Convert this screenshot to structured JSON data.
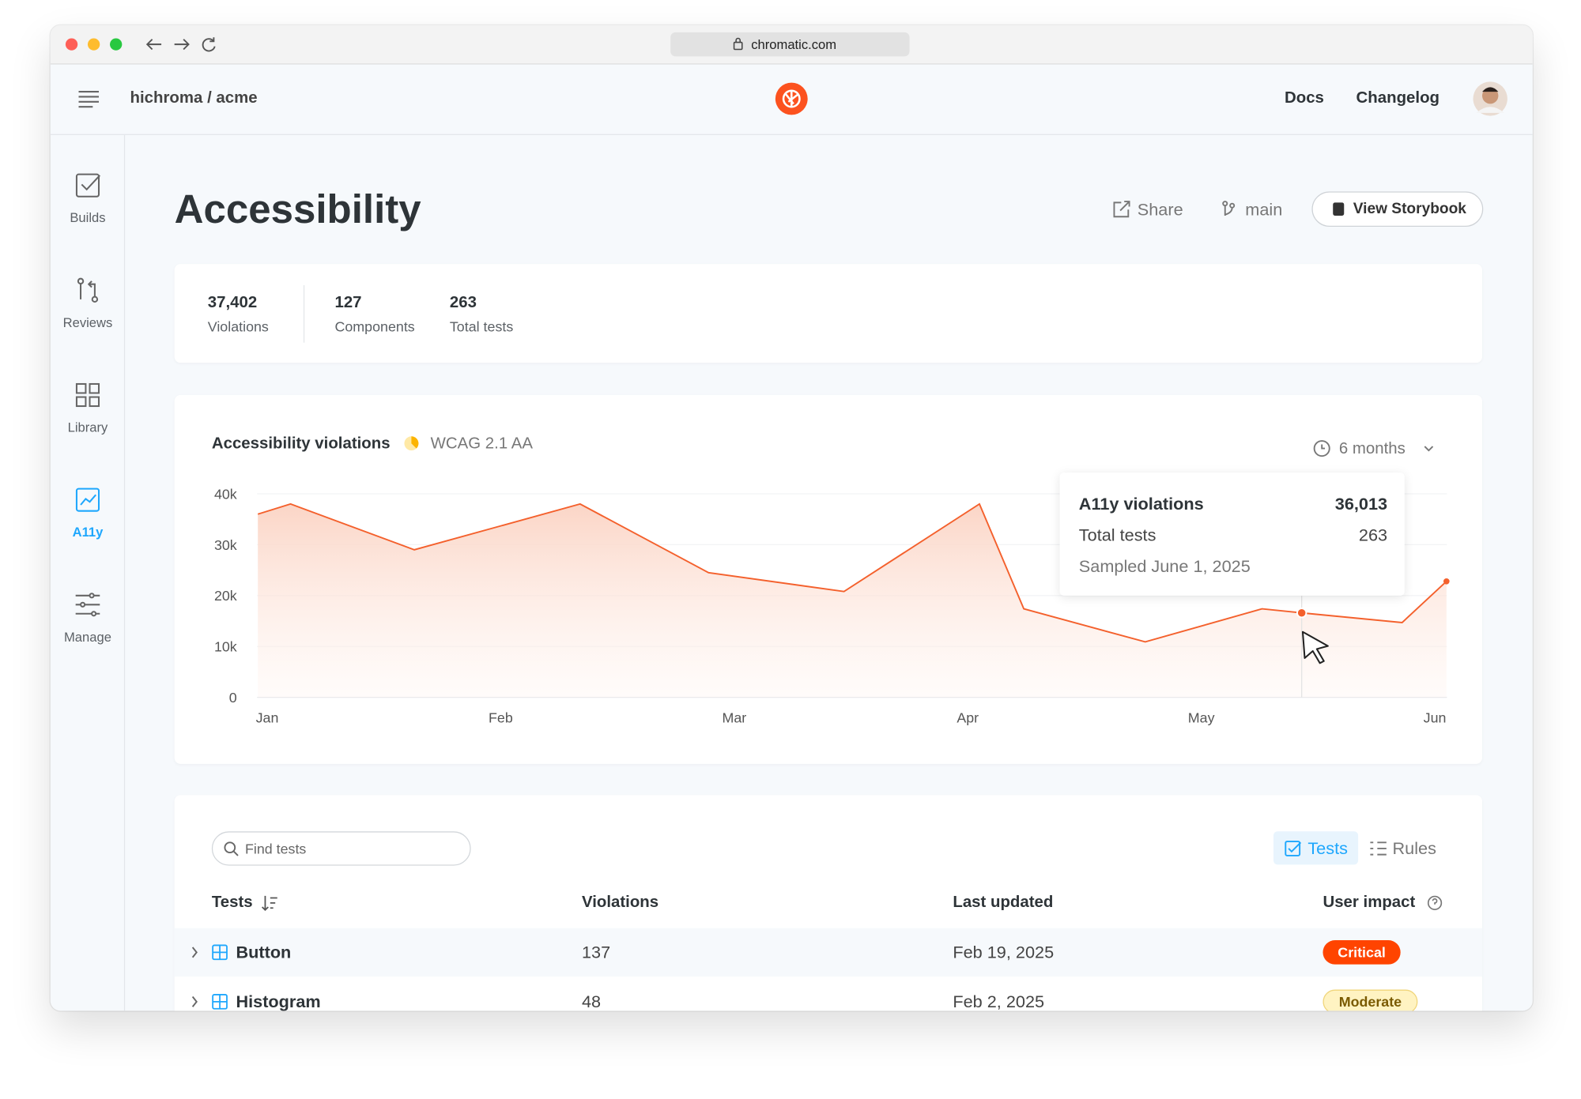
{
  "browser": {
    "url": "chromatic.com"
  },
  "header": {
    "breadcrumb": "hichroma / acme",
    "links": [
      "Docs",
      "Changelog"
    ]
  },
  "sidebar": [
    "Builds",
    "Reviews",
    "Library",
    "A11y",
    "Manage"
  ],
  "page": {
    "title": "Accessibility",
    "actions": [
      "Share",
      "main",
      "View Storybook"
    ]
  },
  "stats": [
    {
      "value": "37,402",
      "label": "Violations"
    },
    {
      "value": "127",
      "label": "Components"
    },
    {
      "value": "263",
      "label": "Total tests"
    }
  ],
  "chart_data": {
    "type": "line",
    "title": "Accessibility violations",
    "subtitle": "WCAG 2.1 AA",
    "range": "6 months",
    "color": "#f4602c",
    "x": [
      -0.04,
      0.1,
      0.63,
      1.34,
      1.89,
      2.47,
      3.05,
      3.24,
      3.76,
      4.26,
      4.43,
      4.86,
      5.05
    ],
    "values": [
      36000,
      38000,
      29000,
      38000,
      24500,
      20800,
      38000,
      17400,
      10900,
      17400,
      16600,
      14700,
      22800
    ],
    "xlim": [
      -0.04,
      5.05
    ],
    "xticks": [
      {
        "value": 0,
        "label": "Jan"
      },
      {
        "value": 1,
        "label": "Feb"
      },
      {
        "value": 2,
        "label": "Mar"
      },
      {
        "value": 3,
        "label": "Apr"
      },
      {
        "value": 4,
        "label": "May"
      },
      {
        "value": 5,
        "label": "Jun"
      }
    ],
    "ylim": [
      0,
      40000
    ],
    "yticks": [
      0,
      {
        "value": 10000,
        "label": "10k"
      },
      {
        "value": 20000,
        "label": "20k"
      },
      {
        "value": 30000,
        "label": "30k"
      },
      {
        "value": 40000,
        "label": "40k"
      }
    ],
    "grid": true,
    "tooltip": {
      "title": "A11y violations",
      "title_value": "36,013",
      "label": "Total tests",
      "value": "263",
      "note": "Sampled June 1, 2025"
    }
  },
  "table": {
    "search_placeholder": "Find tests",
    "tabs": [
      "Tests",
      "Rules"
    ],
    "columns": [
      "Tests",
      "Violations",
      "Last updated",
      "User impact"
    ],
    "rows": [
      [
        "Button",
        137,
        "Feb 19, 2025",
        "Critical"
      ],
      [
        "Histogram",
        48,
        "Feb 2, 2025",
        "Moderate"
      ]
    ]
  }
}
